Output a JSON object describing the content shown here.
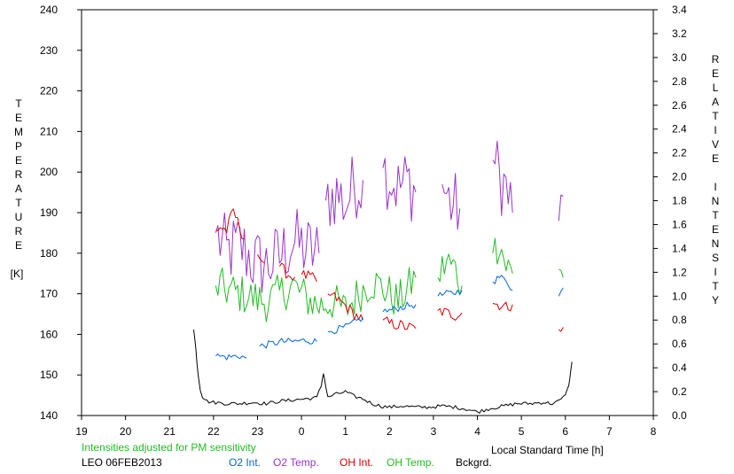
{
  "chart_data": {
    "type": "line",
    "left_axis": {
      "label_letters": [
        "T",
        "E",
        "M",
        "P",
        "E",
        "R",
        "A",
        "T",
        "U",
        "R",
        "E"
      ],
      "unit": "[K]",
      "range": [
        140,
        240
      ],
      "ticks": [
        "140",
        "150",
        "160",
        "170",
        "180",
        "190",
        "200",
        "210",
        "220",
        "230",
        "240"
      ]
    },
    "right_axis": {
      "label_letters": [
        "R",
        "E",
        "L",
        "A",
        "T",
        "I",
        "V",
        "E",
        "",
        "I",
        "N",
        "T",
        "E",
        "N",
        "S",
        "I",
        "T",
        "Y"
      ],
      "range": [
        0,
        3.4
      ],
      "ticks": [
        "0.0",
        "0.2",
        "0.4",
        "0.6",
        "0.8",
        "1.0",
        "1.2",
        "1.4",
        "1.6",
        "1.8",
        "2.0",
        "2.2",
        "2.4",
        "2.6",
        "2.8",
        "3.0",
        "3.2",
        "3.4"
      ]
    },
    "x_axis": {
      "label": "Local Standard Time [h]",
      "range": [
        19,
        32
      ],
      "ticks": [
        "19",
        "20",
        "21",
        "22",
        "23",
        "0",
        "1",
        "2",
        "3",
        "4",
        "5",
        "6",
        "7",
        "8"
      ]
    },
    "note": "Intensities adjusted for PM sensitivity",
    "station": "LEO 06FEB2013",
    "legend": [
      {
        "label": "O2 Int.",
        "color": "#0066dd"
      },
      {
        "label": "O2 Temp.",
        "color": "#9933cc"
      },
      {
        "label": "OH Int.",
        "color": "#dd0000"
      },
      {
        "label": "OH Temp.",
        "color": "#22bb22"
      },
      {
        "label": "Bckgrd.",
        "color": "#000000"
      }
    ],
    "series": [
      {
        "name": "O2 Temp.",
        "axis": "left",
        "color": "#9933cc",
        "noise": 9,
        "segments": [
          {
            "x": [
              22.05,
              22.3,
              22.6,
              22.9,
              23.2,
              23.5,
              23.8,
              24.1,
              24.4
            ],
            "y": [
              185,
              180,
              182,
              178,
              177,
              179,
              183,
              181,
              180
            ]
          },
          {
            "x": [
              24.55,
              24.8,
              25.0,
              25.2,
              25.4
            ],
            "y": [
              193,
              195,
              192,
              197,
              198
            ]
          },
          {
            "x": [
              25.85,
              26.0,
              26.2,
              26.4,
              26.6
            ],
            "y": [
              201,
              199,
              196,
              198,
              195
            ]
          },
          {
            "x": [
              27.2,
              27.4,
              27.6
            ],
            "y": [
              197,
              192,
              191
            ]
          },
          {
            "x": [
              28.35,
              28.5,
              28.65,
              28.8
            ],
            "y": [
              203,
              199,
              196,
              190
            ]
          },
          {
            "x": [
              29.85,
              29.95
            ],
            "y": [
              188,
              194
            ]
          }
        ]
      },
      {
        "name": "OH Temp.",
        "axis": "left",
        "color": "#22bb22",
        "noise": 5,
        "segments": [
          {
            "x": [
              22.05,
              22.3,
              22.6,
              22.9,
              23.2,
              23.5,
              23.8,
              24.1,
              24.4,
              24.7,
              25.0,
              25.3,
              25.6,
              25.9,
              26.2,
              26.6
            ],
            "y": [
              172,
              171,
              170,
              169,
              168,
              170,
              172,
              169,
              167,
              168,
              166,
              170,
              173,
              171,
              168,
              174
            ]
          },
          {
            "x": [
              27.1,
              27.3,
              27.5,
              27.65
            ],
            "y": [
              174,
              178,
              176,
              172
            ]
          },
          {
            "x": [
              28.35,
              28.5,
              28.65,
              28.8
            ],
            "y": [
              180,
              183,
              177,
              175
            ]
          },
          {
            "x": [
              29.85,
              29.95
            ],
            "y": [
              176,
              174
            ]
          }
        ]
      },
      {
        "name": "OH Int.",
        "axis": "right",
        "color": "#dd0000",
        "noise": 0.05,
        "segments": [
          {
            "x": [
              22.05,
              22.15,
              22.3,
              22.45,
              22.55,
              22.7
            ],
            "y": [
              1.55,
              1.58,
              1.55,
              1.72,
              1.62,
              1.48
            ]
          },
          {
            "x": [
              23.0,
              23.15
            ],
            "y": [
              1.35,
              1.28
            ]
          },
          {
            "x": [
              23.5,
              23.7,
              23.85
            ],
            "y": [
              1.25,
              1.18,
              1.16
            ]
          },
          {
            "x": [
              24.0,
              24.2,
              24.35
            ],
            "y": [
              1.18,
              1.16,
              1.12
            ]
          },
          {
            "x": [
              24.6,
              24.8,
              25.0,
              25.2,
              25.4
            ],
            "y": [
              1.02,
              0.98,
              0.92,
              0.85,
              0.8
            ]
          },
          {
            "x": [
              25.85,
              26.0,
              26.2,
              26.4,
              26.6
            ],
            "y": [
              0.8,
              0.77,
              0.76,
              0.74,
              0.73
            ]
          },
          {
            "x": [
              27.1,
              27.3,
              27.5,
              27.65
            ],
            "y": [
              0.88,
              0.86,
              0.84,
              0.86
            ]
          },
          {
            "x": [
              28.35,
              28.5,
              28.65,
              28.8
            ],
            "y": [
              0.94,
              0.93,
              0.91,
              0.93
            ]
          },
          {
            "x": [
              29.85,
              29.95
            ],
            "y": [
              0.72,
              0.74
            ]
          }
        ]
      },
      {
        "name": "O2 Int.",
        "axis": "right",
        "color": "#0066dd",
        "noise": 0.03,
        "segments": [
          {
            "x": [
              22.05,
              22.3,
              22.6,
              22.75
            ],
            "y": [
              0.5,
              0.49,
              0.5,
              0.48
            ]
          },
          {
            "x": [
              23.05,
              23.3,
              23.55,
              23.8,
              24.1,
              24.35
            ],
            "y": [
              0.58,
              0.6,
              0.62,
              0.62,
              0.63,
              0.62
            ]
          },
          {
            "x": [
              24.6,
              24.8,
              25.0,
              25.2,
              25.4
            ],
            "y": [
              0.7,
              0.72,
              0.74,
              0.78,
              0.82
            ]
          },
          {
            "x": [
              25.85,
              26.0,
              26.2,
              26.4,
              26.6
            ],
            "y": [
              0.87,
              0.88,
              0.9,
              0.92,
              0.93
            ]
          },
          {
            "x": [
              27.1,
              27.3,
              27.5,
              27.65
            ],
            "y": [
              1.0,
              1.02,
              1.03,
              1.05
            ]
          },
          {
            "x": [
              28.35,
              28.5,
              28.65,
              28.8
            ],
            "y": [
              1.12,
              1.16,
              1.14,
              1.05
            ]
          },
          {
            "x": [
              29.85,
              29.95
            ],
            "y": [
              1.0,
              1.07
            ]
          }
        ]
      },
      {
        "name": "Bckgrd.",
        "axis": "right",
        "color": "#000000",
        "noise": 0.015,
        "segments": [
          {
            "x": [
              21.55,
              21.6,
              21.65,
              21.7,
              21.75,
              21.85,
              22.0,
              22.3,
              22.6,
              22.9,
              23.2,
              23.5,
              23.8,
              24.1,
              24.35,
              24.45,
              24.5,
              24.55,
              24.6,
              24.7,
              25.0,
              25.2,
              25.4,
              25.6,
              25.8,
              26.0,
              26.3,
              26.6,
              26.9,
              27.2,
              27.5,
              27.8,
              28.0,
              28.3,
              28.6,
              28.9,
              29.2,
              29.5,
              29.7,
              29.85,
              29.95,
              30.05,
              30.1,
              30.15
            ],
            "y": [
              0.72,
              0.55,
              0.35,
              0.22,
              0.16,
              0.12,
              0.11,
              0.1,
              0.1,
              0.11,
              0.1,
              0.12,
              0.13,
              0.14,
              0.15,
              0.25,
              0.36,
              0.25,
              0.15,
              0.17,
              0.2,
              0.16,
              0.14,
              0.1,
              0.08,
              0.07,
              0.08,
              0.07,
              0.07,
              0.08,
              0.07,
              0.05,
              0.03,
              0.06,
              0.08,
              0.1,
              0.1,
              0.11,
              0.1,
              0.12,
              0.15,
              0.22,
              0.3,
              0.45
            ]
          }
        ]
      }
    ]
  }
}
